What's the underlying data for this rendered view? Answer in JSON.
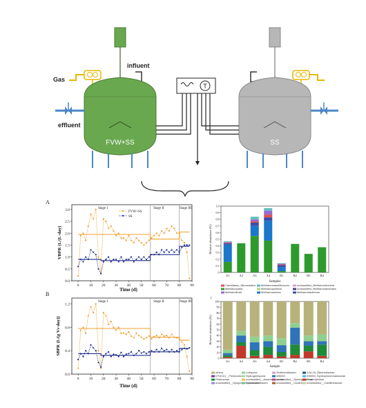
{
  "reactor_diagram": {
    "left_reactor_label": "FVW+SS",
    "right_reactor_label": "SS",
    "gas_label": "Gas",
    "influent_label": "influent",
    "effluent_label": "effluent",
    "motor_label": "M",
    "temp_controller_label": "T",
    "colors": {
      "green_reactor": "#6aa84f",
      "grey_reactor": "#b7b7b7",
      "pipe_blue": "#4a86c5",
      "gas_yellow": "#e6b800"
    }
  },
  "panel_a": {
    "letter": "A",
    "ylabel": "VBPR (L/(L·day)",
    "xlabel": "Time (d)",
    "stage1": "Stage I",
    "stage2": "Stage II",
    "stage3": "Stage III",
    "legend_fvw": "FVW+SS",
    "legend_ss": "SS",
    "yticks": [
      "0.0",
      "0.5",
      "1.0",
      "1.5",
      "2.0",
      "2.5",
      "3.0"
    ],
    "xticks": [
      "0",
      "10",
      "20",
      "30",
      "40",
      "50",
      "60",
      "70",
      "80",
      "90"
    ]
  },
  "panel_b": {
    "letter": "B",
    "ylabel": "SBPR (L/(g Vs·day))",
    "xlabel": "Time (d)",
    "stage1": "Stage I",
    "stage2": "Stage II",
    "stage3": "Stage III",
    "yticks": [
      "0.0",
      "0.4",
      "0.8",
      "1.2"
    ],
    "xticks": [
      "0",
      "10",
      "20",
      "30",
      "40",
      "50",
      "60",
      "70",
      "80",
      "90"
    ]
  },
  "chart_data": [
    {
      "type": "line",
      "panel": "A",
      "xlabel": "Time (d)",
      "ylabel": "VBPR (L/(L·day)",
      "xlim": [
        -5,
        90
      ],
      "ylim": [
        0,
        3.2
      ],
      "series": [
        {
          "name": "FVW+SS",
          "color": "#f0a030",
          "x": [
            0,
            2,
            4,
            6,
            8,
            10,
            12,
            14,
            16,
            18,
            20,
            22,
            24,
            26,
            28,
            30,
            32,
            34,
            36,
            38,
            40,
            42,
            44,
            46,
            48,
            50,
            52,
            54,
            56,
            58,
            60,
            62,
            64,
            66,
            68,
            70,
            72,
            74,
            76,
            78,
            80,
            82,
            84,
            86,
            88
          ],
          "y": [
            0.2,
            1.9,
            2.0,
            1.7,
            2.3,
            2.8,
            2.6,
            3.0,
            1.0,
            0.3,
            2.6,
            2.5,
            2.2,
            2.3,
            2.1,
            1.9,
            2.0,
            1.8,
            1.8,
            1.7,
            1.9,
            1.7,
            1.6,
            1.8,
            1.7,
            1.6,
            1.5,
            1.6,
            1.7,
            1.8,
            1.9,
            2.0,
            1.9,
            2.1,
            2.0,
            2.2,
            2.1,
            2.3,
            2.2,
            2.0,
            2.0,
            1.7,
            1.6,
            1.2,
            0.1
          ]
        },
        {
          "name": "SS",
          "color": "#1f2f8a",
          "x": [
            0,
            2,
            4,
            6,
            8,
            10,
            12,
            14,
            16,
            18,
            20,
            22,
            24,
            26,
            28,
            30,
            32,
            34,
            36,
            38,
            40,
            42,
            44,
            46,
            48,
            50,
            52,
            54,
            56,
            58,
            60,
            62,
            64,
            66,
            68,
            70,
            72,
            74,
            76,
            78,
            80,
            82,
            84,
            86,
            88
          ],
          "y": [
            0.6,
            0.9,
            0.8,
            1.0,
            0.9,
            1.3,
            1.2,
            1.1,
            0.5,
            0.3,
            0.8,
            0.9,
            1.0,
            0.8,
            0.9,
            0.9,
            0.8,
            1.0,
            0.8,
            0.9,
            0.9,
            1.0,
            0.8,
            0.9,
            1.0,
            0.9,
            1.0,
            0.9,
            1.0,
            1.1,
            1.1,
            1.2,
            1.1,
            1.3,
            1.2,
            1.3,
            1.2,
            1.3,
            1.2,
            1.3,
            1.2,
            1.4,
            1.5,
            1.5,
            1.5
          ]
        },
        {
          "name": "FVW+SS mean",
          "color": "#f0a030",
          "x": [
            0,
            57,
            57,
            80,
            80,
            88
          ],
          "y": [
            1.95,
            1.95,
            1.75,
            1.75,
            2.05,
            2.05
          ]
        },
        {
          "name": "SS mean",
          "color": "#1f2f8a",
          "x": [
            0,
            18,
            18,
            57,
            57,
            80,
            80,
            88
          ],
          "y": [
            0.9,
            0.9,
            0.85,
            0.85,
            1.1,
            1.1,
            1.45,
            1.45
          ]
        }
      ]
    },
    {
      "type": "line",
      "panel": "B",
      "xlabel": "Time (d)",
      "ylabel": "SBPR (L/(g Vs·day))",
      "xlim": [
        -5,
        90
      ],
      "ylim": [
        0,
        1.3
      ],
      "series": [
        {
          "name": "FVW+SS",
          "color": "#f0a030",
          "x": [
            0,
            2,
            4,
            6,
            8,
            10,
            12,
            14,
            16,
            18,
            20,
            22,
            24,
            26,
            28,
            30,
            32,
            34,
            36,
            38,
            40,
            42,
            44,
            46,
            48,
            50,
            52,
            54,
            56,
            58,
            60,
            62,
            64,
            66,
            68,
            70,
            72,
            74,
            76,
            78,
            80,
            82,
            84,
            86,
            88
          ],
          "y": [
            0.1,
            0.75,
            0.8,
            0.7,
            1.0,
            1.15,
            1.05,
            1.2,
            0.4,
            0.1,
            1.05,
            1.0,
            0.85,
            0.9,
            0.8,
            0.75,
            0.8,
            0.7,
            0.7,
            0.68,
            0.72,
            0.65,
            0.62,
            0.7,
            0.66,
            0.63,
            0.6,
            0.62,
            0.65,
            0.6,
            0.64,
            0.66,
            0.62,
            0.68,
            0.65,
            0.66,
            0.62,
            0.68,
            0.63,
            0.62,
            0.62,
            0.55,
            0.5,
            0.3,
            0.05
          ]
        },
        {
          "name": "SS",
          "color": "#1f2f8a",
          "x": [
            0,
            2,
            4,
            6,
            8,
            10,
            12,
            14,
            16,
            18,
            20,
            22,
            24,
            26,
            28,
            30,
            32,
            34,
            36,
            38,
            40,
            42,
            44,
            46,
            48,
            50,
            52,
            54,
            56,
            58,
            60,
            62,
            64,
            66,
            68,
            70,
            72,
            74,
            76,
            78,
            80,
            82,
            84,
            86,
            88
          ],
          "y": [
            0.25,
            0.35,
            0.3,
            0.4,
            0.35,
            0.5,
            0.45,
            0.4,
            0.2,
            0.12,
            0.3,
            0.35,
            0.38,
            0.3,
            0.34,
            0.33,
            0.3,
            0.37,
            0.3,
            0.34,
            0.35,
            0.38,
            0.32,
            0.35,
            0.4,
            0.36,
            0.38,
            0.35,
            0.38,
            0.4,
            0.38,
            0.42,
            0.38,
            0.44,
            0.4,
            0.42,
            0.38,
            0.42,
            0.38,
            0.4,
            0.38,
            0.42,
            0.44,
            0.43,
            0.45
          ]
        },
        {
          "name": "FVW+SS mean",
          "color": "#f0a030",
          "x": [
            0,
            57,
            57,
            80,
            80,
            88
          ],
          "y": [
            0.78,
            0.78,
            0.63,
            0.63,
            0.58,
            0.58
          ]
        },
        {
          "name": "SS mean",
          "color": "#1f2f8a",
          "x": [
            0,
            18,
            18,
            57,
            57,
            80,
            80,
            88
          ],
          "y": [
            0.35,
            0.35,
            0.32,
            0.32,
            0.38,
            0.38,
            0.44,
            0.44
          ]
        }
      ]
    },
    {
      "type": "bar",
      "panel": "relative_abundance_top",
      "ylabel": "Relative abundance (%)",
      "xlabel": "Samples",
      "categories": [
        "A1",
        "A2",
        "A3",
        "A4",
        "B1",
        "B2",
        "B3",
        "B4"
      ],
      "ylim": [
        0,
        1.0
      ],
      "yticks": [
        "0",
        "0.1",
        "0.2",
        "0.3",
        "0.4",
        "0.5",
        "0.6",
        "0.7",
        "0.8",
        "0.9",
        "1.0"
      ],
      "series": [
        {
          "name": "Methanosaeta",
          "color": "#2e9a2e",
          "values": [
            0.16,
            0.44,
            0.55,
            0.48,
            0.02,
            0.43,
            0.28,
            0.38
          ]
        },
        {
          "name": "Methanosarcina",
          "color": "#1b77c9",
          "values": [
            0.26,
            0.0,
            0.15,
            0.3,
            0.06,
            0.0,
            0.0,
            0.0
          ]
        },
        {
          "name": "Methanobacterium",
          "color": "#3a4ea8",
          "values": [
            0.02,
            0.0,
            0.05,
            0.05,
            0.03,
            0.0,
            0.0,
            0.0
          ]
        },
        {
          "name": "Candidatus_Nitrosotalea",
          "color": "#e05050",
          "values": [
            0.01,
            0.0,
            0.02,
            0.04,
            0.01,
            0.0,
            0.0,
            0.0
          ]
        },
        {
          "name": "Methanolinea",
          "color": "#9a6ad0",
          "values": [
            0.01,
            0.0,
            0.03,
            0.06,
            0.01,
            0.0,
            0.0,
            0.0
          ]
        },
        {
          "name": "Methanomassiliicoccus",
          "color": "#60c0c0",
          "values": [
            0.01,
            0.0,
            0.04,
            0.04,
            0.01,
            0.0,
            0.0,
            0.0
          ]
        }
      ],
      "legend": [
        "Candidatus_Nitrosotalea",
        "Methanomassiliicoccus",
        "unclassified_Methanomicrobia",
        "Methanosaeta",
        "Methanospirillum",
        "unclassified_Methanosarcinales",
        "Methanolinea",
        "Methanosarcina",
        "Methanobacterium"
      ]
    },
    {
      "type": "bar",
      "panel": "relative_abundance_bottom",
      "ylabel": "Relative abundance (%)",
      "xlabel": "Sample",
      "categories": [
        "A1",
        "A2",
        "A3",
        "A4",
        "B1",
        "B2",
        "B3",
        "B4"
      ],
      "ylim": [
        0,
        100
      ],
      "yticks": [
        "0",
        "10",
        "20",
        "30",
        "40",
        "50",
        "60",
        "70",
        "80",
        "90",
        "100"
      ],
      "series": [
        {
          "name": "Proteiniphilum",
          "color": "#c0392b",
          "values": [
            2,
            22,
            4,
            6,
            3,
            6,
            12,
            4
          ]
        },
        {
          "name": "Petrimonas",
          "color": "#1e8a3a",
          "values": [
            3,
            6,
            10,
            14,
            8,
            18,
            10,
            20
          ]
        },
        {
          "name": "W5053",
          "color": "#2f73b8",
          "values": [
            4,
            12,
            14,
            10,
            12,
            30,
            8,
            6
          ]
        },
        {
          "name": "Lutispora",
          "color": "#8fd08f",
          "values": [
            6,
            8,
            10,
            10,
            12,
            8,
            10,
            12
          ]
        },
        {
          "name": "others",
          "color": "#b6b27a",
          "values": [
            85,
            52,
            62,
            60,
            65,
            38,
            60,
            58
          ]
        }
      ],
      "legend": [
        "others",
        "Lutispora",
        "Sedimentibacter",
        "SJA-15_Rikenellaceae",
        "DTU014__Firmicutes",
        "Hydrogenispora",
        "W5053",
        "W5053_Syntrophomonadaceae",
        "Petrimonas",
        "unclassified__Anaerolineaceae",
        "unclassified__Synergistaceae",
        "Proteiniphilum",
        "unclassified__Dysgonomonadaceae",
        "Sporanaerobacter",
        "unclassified__Clostridia",
        "unclassified__Caldilineaceae"
      ]
    }
  ]
}
